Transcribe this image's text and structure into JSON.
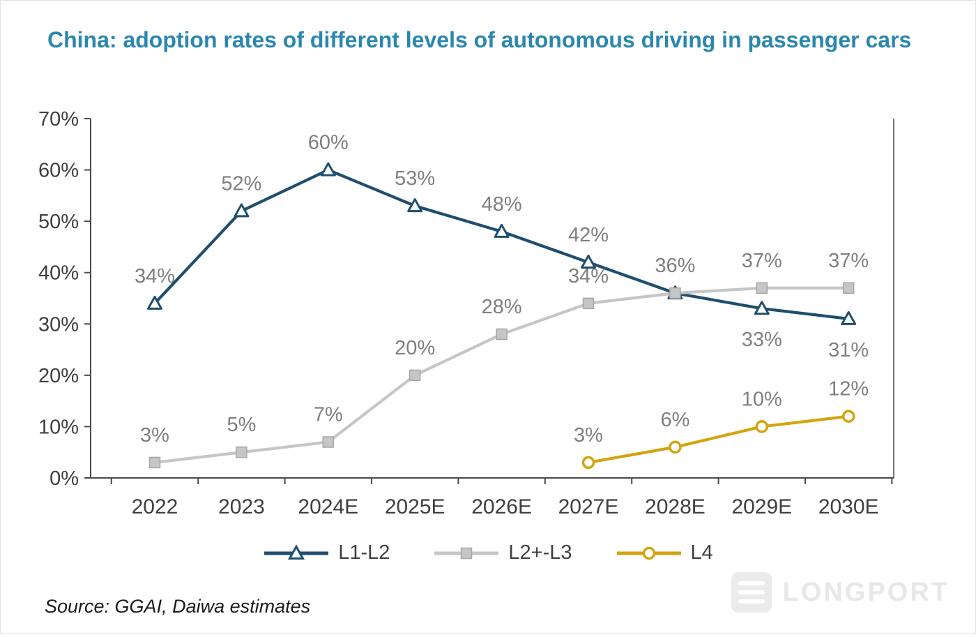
{
  "title": "China: adoption rates of different levels of autonomous driving in passenger cars",
  "source": "Source: GGAI, Daiwa estimates",
  "watermark": "LONGPORT",
  "colors": {
    "title": "#2b87ad",
    "axis": "#4a4a4a",
    "tick_label": "#3f3f3f",
    "data_label": "#7f7f7f",
    "l1l2": "#1f4e6e",
    "l2l3": "#c6c6c6",
    "l2l3_border": "#a6a6a6",
    "l4": "#d2a411"
  },
  "chart_data": {
    "type": "line",
    "title": "China: adoption rates of different levels of autonomous driving in passenger cars",
    "categories": [
      "2022",
      "2023",
      "2024E",
      "2025E",
      "2026E",
      "2027E",
      "2028E",
      "2029E",
      "2030E"
    ],
    "series": [
      {
        "name": "L1-L2",
        "marker": "triangle",
        "color": "#1f4e6e",
        "values": [
          34,
          52,
          60,
          53,
          48,
          42,
          36,
          33,
          31
        ],
        "labels": [
          "34%",
          "52%",
          "60%",
          "53%",
          "48%",
          "42%",
          "36%",
          "33%",
          "31%"
        ],
        "label_positions": [
          "above",
          "above",
          "above",
          "above",
          "above",
          "above",
          "above",
          "below",
          "below"
        ]
      },
      {
        "name": "L2+-L3",
        "marker": "square",
        "color": "#c6c6c6",
        "values": [
          3,
          5,
          7,
          20,
          28,
          34,
          36,
          37,
          37
        ],
        "labels": [
          "3%",
          "5%",
          "7%",
          "20%",
          "28%",
          "34%",
          "",
          "37%",
          "37%"
        ],
        "label_positions": [
          "above",
          "above",
          "above",
          "above",
          "above",
          "above",
          "above",
          "above",
          "above"
        ]
      },
      {
        "name": "L4",
        "marker": "circle",
        "color": "#d2a411",
        "values": [
          null,
          null,
          null,
          null,
          null,
          3,
          6,
          10,
          12
        ],
        "labels": [
          "",
          "",
          "",
          "",
          "",
          "3%",
          "6%",
          "10%",
          "12%"
        ],
        "label_positions": [
          "above",
          "above",
          "above",
          "above",
          "above",
          "above",
          "above",
          "above",
          "above"
        ]
      }
    ],
    "ytick_labels": [
      "0%",
      "10%",
      "20%",
      "30%",
      "40%",
      "50%",
      "60%",
      "70%"
    ],
    "ylim": [
      0,
      70
    ],
    "xlabel": "",
    "ylabel": "",
    "grid": false,
    "legend_position": "bottom"
  }
}
